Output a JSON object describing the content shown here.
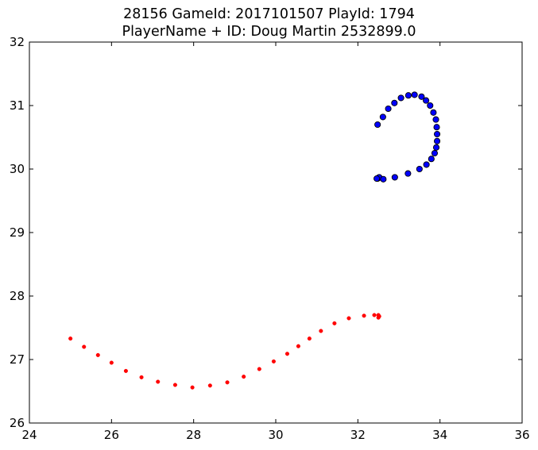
{
  "chart_data": {
    "type": "scatter",
    "title": "28156 GameId: 2017101507 PlayId: 1794",
    "subtitle": "PlayerName + ID: Doug Martin 2532899.0",
    "xlabel": "",
    "ylabel": "",
    "xlim": [
      24,
      36
    ],
    "ylim": [
      26,
      32
    ],
    "xticks": [
      "24",
      "26",
      "28",
      "30",
      "32",
      "34",
      "36"
    ],
    "yticks": [
      "26",
      "27",
      "28",
      "29",
      "30",
      "31",
      "32"
    ],
    "grid": false,
    "series": [
      {
        "color": "#0000ff",
        "marker": "large-circle-black-edge",
        "points": [
          [
            32.48,
            29.85
          ],
          [
            32.5,
            29.86
          ],
          [
            32.52,
            29.87
          ],
          [
            32.46,
            29.85
          ],
          [
            32.62,
            29.84
          ],
          [
            32.9,
            29.87
          ],
          [
            33.22,
            29.93
          ],
          [
            33.5,
            30.0
          ],
          [
            33.67,
            30.07
          ],
          [
            33.79,
            30.16
          ],
          [
            33.87,
            30.25
          ],
          [
            33.91,
            30.34
          ],
          [
            33.93,
            30.44
          ],
          [
            33.93,
            30.55
          ],
          [
            33.92,
            30.66
          ],
          [
            33.9,
            30.78
          ],
          [
            33.84,
            30.89
          ],
          [
            33.76,
            31.0
          ],
          [
            33.66,
            31.08
          ],
          [
            33.55,
            31.14
          ],
          [
            33.38,
            31.17
          ],
          [
            33.23,
            31.16
          ],
          [
            33.05,
            31.12
          ],
          [
            32.89,
            31.04
          ],
          [
            32.74,
            30.95
          ],
          [
            32.61,
            30.82
          ],
          [
            32.48,
            30.7
          ]
        ]
      },
      {
        "color": "#ff0000",
        "marker": "small-dot",
        "points": [
          [
            25.0,
            27.33
          ],
          [
            25.33,
            27.2
          ],
          [
            25.67,
            27.07
          ],
          [
            26.0,
            26.95
          ],
          [
            26.35,
            26.82
          ],
          [
            26.73,
            26.72
          ],
          [
            27.13,
            26.65
          ],
          [
            27.55,
            26.6
          ],
          [
            27.97,
            26.56
          ],
          [
            28.4,
            26.59
          ],
          [
            28.82,
            26.64
          ],
          [
            29.22,
            26.73
          ],
          [
            29.6,
            26.85
          ],
          [
            29.95,
            26.97
          ],
          [
            30.28,
            27.09
          ],
          [
            30.55,
            27.21
          ],
          [
            30.82,
            27.33
          ],
          [
            31.1,
            27.45
          ],
          [
            31.43,
            27.57
          ],
          [
            31.78,
            27.65
          ],
          [
            32.15,
            27.69
          ],
          [
            32.4,
            27.7
          ],
          [
            32.5,
            27.7
          ],
          [
            32.52,
            27.68
          ],
          [
            32.5,
            27.66
          ]
        ]
      }
    ]
  }
}
